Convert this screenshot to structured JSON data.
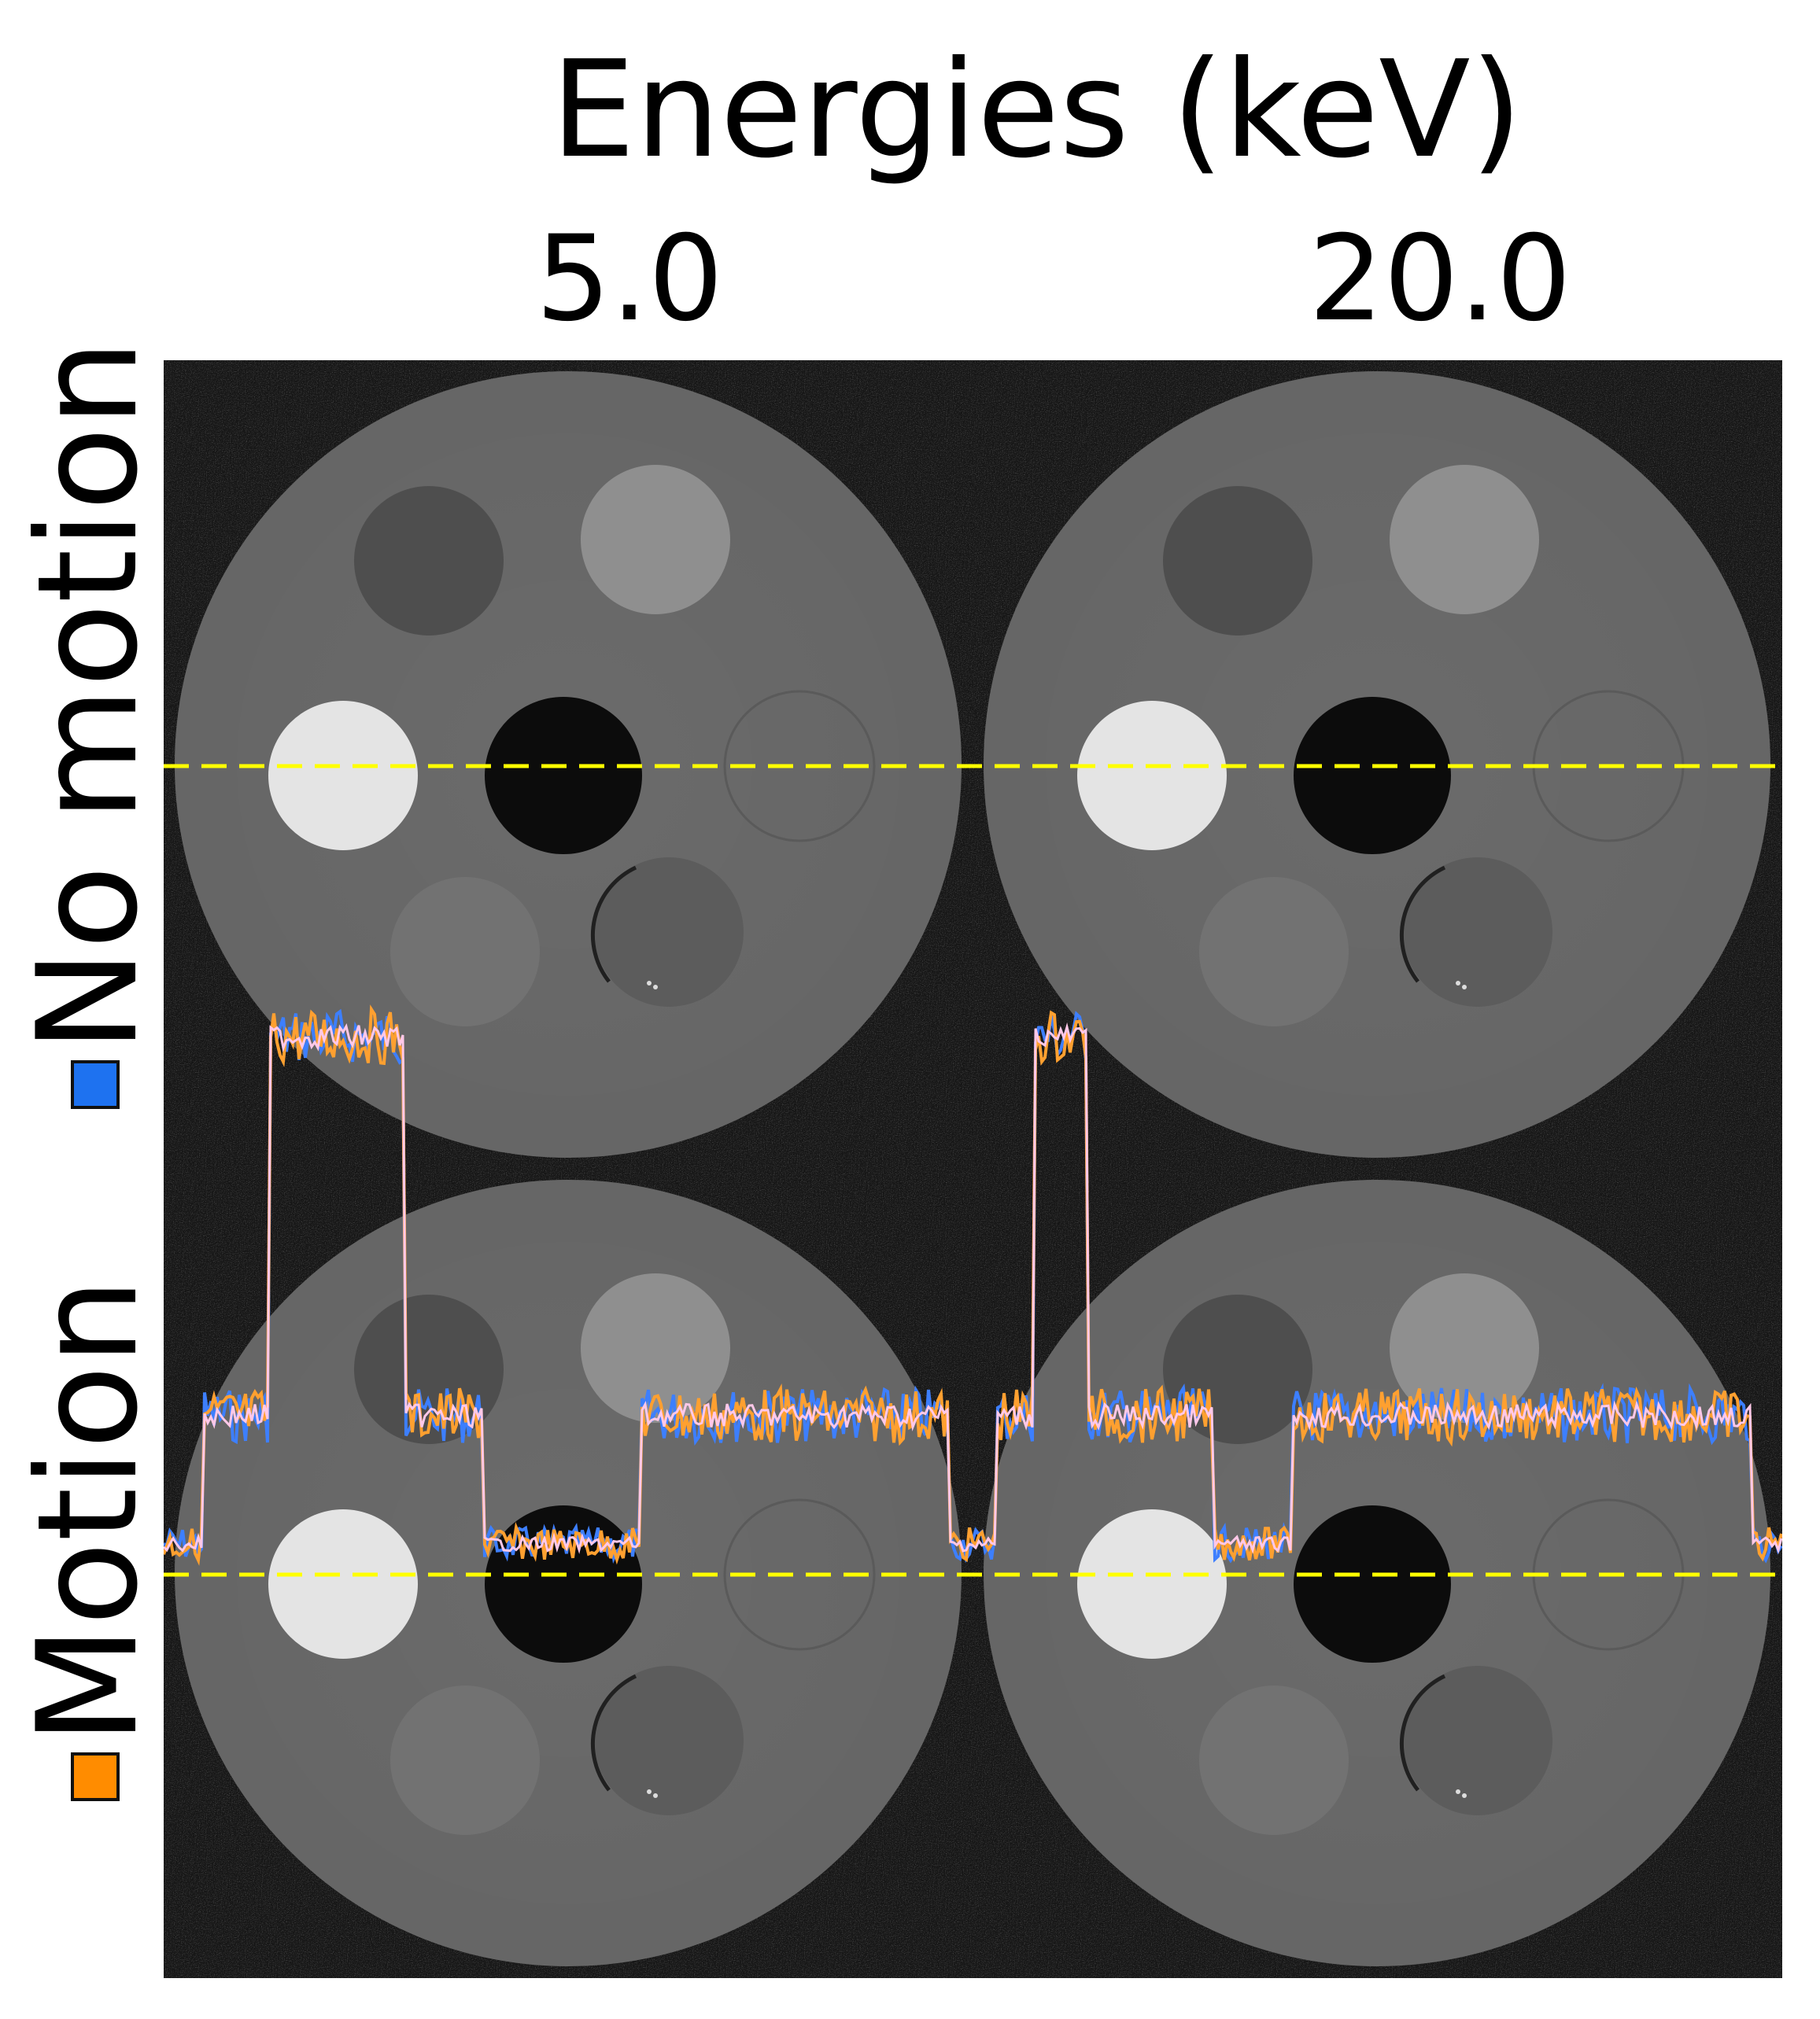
{
  "figure": {
    "title": "Energies (keV)",
    "columns": [
      {
        "label": "5.0"
      },
      {
        "label": "20.0"
      }
    ],
    "rows": [
      {
        "label": "No motion",
        "swatch_color": "#1E72F0"
      },
      {
        "label": "Motion",
        "swatch_color": "#FF8C00"
      }
    ],
    "colors": {
      "background": "#121212",
      "phantom": "#6A6A6A",
      "profile_line": "#FFFF00",
      "no_motion_line": "#3D7FFF",
      "motion_line": "#FFA030",
      "mean_line": "#FFC8E8"
    }
  }
}
